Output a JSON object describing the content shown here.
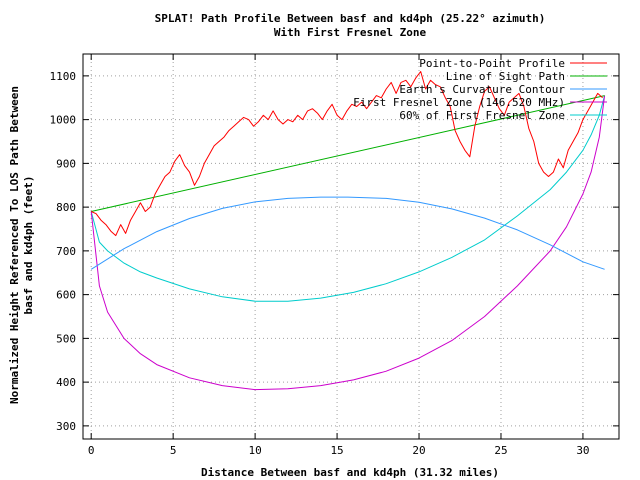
{
  "chart_data": {
    "type": "line",
    "title": "SPLAT! Path Profile Between basf and kd4ph (25.22° azimuth)",
    "subtitle": "With First Fresnel Zone",
    "xlabel": "Distance Between basf and kd4ph (31.32 miles)",
    "ylabel_line1": "Normalized Height Referenced To LOS Path Between",
    "ylabel_line2": "basf and kd4ph (feet)",
    "xlim": [
      -0.5,
      32.2
    ],
    "ylim": [
      270,
      1150
    ],
    "xticks": [
      0,
      5,
      10,
      15,
      20,
      25,
      30
    ],
    "yticks": [
      300,
      400,
      500,
      600,
      700,
      800,
      900,
      1000,
      1100
    ],
    "grid": true,
    "legend_position": "top-right",
    "series": [
      {
        "name": "Point-to-Point Profile",
        "color": "#ff0000",
        "x": [
          0,
          0.3,
          0.6,
          0.9,
          1.2,
          1.5,
          1.8,
          2.1,
          2.4,
          2.7,
          3.0,
          3.3,
          3.6,
          3.9,
          4.2,
          4.5,
          4.8,
          5.1,
          5.4,
          5.7,
          6.0,
          6.3,
          6.6,
          6.9,
          7.2,
          7.5,
          7.8,
          8.1,
          8.4,
          8.7,
          9.0,
          9.3,
          9.6,
          9.9,
          10.2,
          10.5,
          10.8,
          11.1,
          11.4,
          11.7,
          12.0,
          12.3,
          12.6,
          12.9,
          13.2,
          13.5,
          13.8,
          14.1,
          14.4,
          14.7,
          15.0,
          15.3,
          15.6,
          15.9,
          16.2,
          16.5,
          16.8,
          17.1,
          17.4,
          17.7,
          18.0,
          18.3,
          18.6,
          18.9,
          19.2,
          19.5,
          19.8,
          20.1,
          20.4,
          20.7,
          21.0,
          21.3,
          21.6,
          21.9,
          22.2,
          22.5,
          22.8,
          23.1,
          23.4,
          23.7,
          24.0,
          24.3,
          24.6,
          24.9,
          25.2,
          25.5,
          25.8,
          26.1,
          26.4,
          26.7,
          27.0,
          27.3,
          27.6,
          27.9,
          28.2,
          28.5,
          28.8,
          29.1,
          29.4,
          29.7,
          30.0,
          30.3,
          30.6,
          30.9,
          31.2
        ],
        "y": [
          790,
          785,
          770,
          760,
          745,
          735,
          760,
          740,
          770,
          790,
          810,
          790,
          800,
          830,
          850,
          870,
          880,
          905,
          920,
          895,
          880,
          850,
          870,
          900,
          920,
          940,
          950,
          960,
          975,
          985,
          995,
          1005,
          1000,
          985,
          995,
          1010,
          1000,
          1020,
          1000,
          990,
          1000,
          995,
          1010,
          1000,
          1020,
          1025,
          1015,
          1000,
          1020,
          1035,
          1010,
          1000,
          1020,
          1035,
          1030,
          1040,
          1025,
          1040,
          1055,
          1050,
          1070,
          1085,
          1060,
          1085,
          1090,
          1075,
          1095,
          1110,
          1070,
          1090,
          1080,
          1075,
          1050,
          1030,
          975,
          950,
          930,
          915,
          985,
          1030,
          1065,
          1075,
          1050,
          1025,
          1010,
          1040,
          1050,
          1060,
          1030,
          980,
          950,
          900,
          880,
          870,
          880,
          910,
          890,
          930,
          950,
          970,
          1000,
          1020,
          1040,
          1060,
          1050
        ]
      },
      {
        "name": "Line of Sight Path",
        "color": "#00b000",
        "x": [
          0,
          31.32
        ],
        "y": [
          790,
          1055
        ]
      },
      {
        "name": "Earth's Curvature Contour",
        "color": "#3399ff",
        "x": [
          0,
          2,
          4,
          6,
          8,
          10,
          12,
          14,
          15.66,
          18,
          20,
          22,
          24,
          26,
          28,
          30,
          31.32
        ],
        "y": [
          658,
          705,
          744,
          774,
          797,
          812,
          820,
          823,
          823,
          820,
          811,
          796,
          775,
          748,
          714,
          675,
          658
        ]
      },
      {
        "name": "First Fresnel Zone (146.520 MHz)",
        "color": "#cc00cc",
        "x": [
          0,
          0.5,
          1,
          2,
          3,
          4,
          6,
          8,
          10,
          12,
          14,
          16,
          18,
          20,
          22,
          24,
          26,
          28,
          29,
          30,
          30.5,
          31,
          31.32
        ],
        "y": [
          790,
          620,
          560,
          500,
          465,
          440,
          410,
          392,
          383,
          385,
          392,
          405,
          425,
          455,
          495,
          550,
          620,
          700,
          755,
          830,
          880,
          960,
          1055
        ]
      },
      {
        "name": "60% of First Fresnel Zone",
        "color": "#00cccc",
        "x": [
          0,
          0.5,
          1,
          2,
          3,
          4,
          6,
          8,
          10,
          12,
          14,
          16,
          18,
          20,
          22,
          24,
          26,
          28,
          29,
          30,
          30.5,
          31,
          31.32
        ],
        "y": [
          790,
          720,
          700,
          672,
          652,
          638,
          613,
          595,
          585,
          585,
          592,
          605,
          625,
          652,
          685,
          725,
          780,
          840,
          880,
          930,
          965,
          1010,
          1055
        ]
      }
    ],
    "legend": [
      "Point-to-Point Profile",
      "Line of Sight Path",
      "Earth's Curvature Contour",
      "First Fresnel Zone (146.520 MHz)",
      "60% of First Fresnel Zone"
    ]
  }
}
